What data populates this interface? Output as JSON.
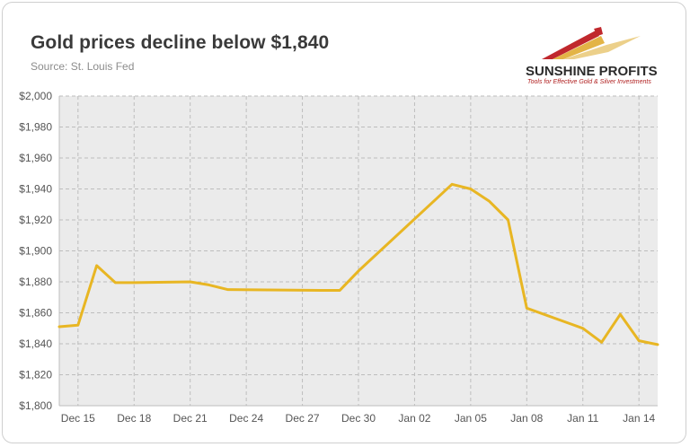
{
  "header": {
    "title": "Gold prices decline below $1,840",
    "subtitle": "Source: St. Louis Fed"
  },
  "logo": {
    "name": "SUNSHINE PROFITS",
    "tagline": "Tools for Effective Gold & Silver Investments"
  },
  "colors": {
    "line": "#e8b623",
    "plot_bg": "#ebebeb",
    "grid": "#bdbdbd",
    "logo_red": "#c0282d",
    "logo_gold": "#e3b446"
  },
  "chart_data": {
    "type": "line",
    "title": "Gold prices decline below $1,840",
    "xlabel": "",
    "ylabel": "",
    "ylim": [
      1800,
      2000
    ],
    "xlim": [
      "2020-12-14",
      "2021-01-15"
    ],
    "y_tick_labels": [
      "$1,800",
      "$1,820",
      "$1,840",
      "$1,860",
      "$1,880",
      "$1,900",
      "$1,920",
      "$1,940",
      "$1,960",
      "$1,980",
      "$2,000"
    ],
    "x_tick_labels": [
      "Dec 15",
      "Dec 18",
      "Dec 21",
      "Dec 24",
      "Dec 27",
      "Dec 30",
      "Jan 02",
      "Jan 05",
      "Jan 08",
      "Jan 11",
      "Jan 14"
    ],
    "grid": true,
    "series": [
      {
        "points": [
          {
            "date": "2020-12-14",
            "value": 1851
          },
          {
            "date": "2020-12-15",
            "value": 1852
          },
          {
            "date": "2020-12-16",
            "value": 1890.5
          },
          {
            "date": "2020-12-17",
            "value": 1879.5
          },
          {
            "date": "2020-12-18",
            "value": 1879.5
          },
          {
            "date": "2020-12-21",
            "value": 1880
          },
          {
            "date": "2020-12-22",
            "value": 1878
          },
          {
            "date": "2020-12-23",
            "value": 1875
          },
          {
            "date": "2020-12-28",
            "value": 1874.5
          },
          {
            "date": "2020-12-29",
            "value": 1874.5
          },
          {
            "date": "2020-12-30",
            "value": 1887
          },
          {
            "date": "2021-01-04",
            "value": 1943
          },
          {
            "date": "2021-01-05",
            "value": 1940
          },
          {
            "date": "2021-01-06",
            "value": 1932
          },
          {
            "date": "2021-01-07",
            "value": 1920
          },
          {
            "date": "2021-01-08",
            "value": 1863
          },
          {
            "date": "2021-01-11",
            "value": 1850
          },
          {
            "date": "2021-01-12",
            "value": 1841
          },
          {
            "date": "2021-01-13",
            "value": 1859
          },
          {
            "date": "2021-01-14",
            "value": 1842
          },
          {
            "date": "2021-01-15",
            "value": 1839.5
          }
        ]
      }
    ]
  }
}
